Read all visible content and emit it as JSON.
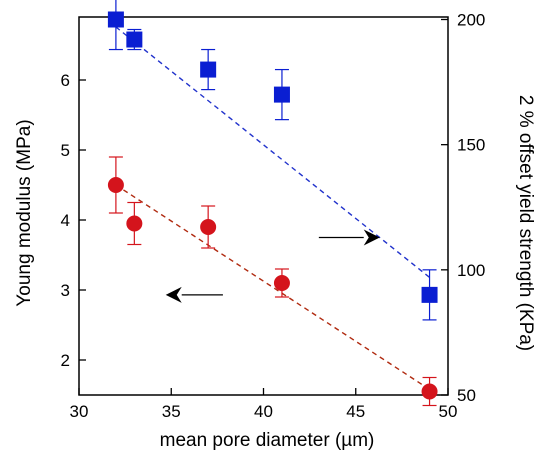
{
  "chart_data": {
    "type": "scatter",
    "xlabel": "mean pore diameter (µm)",
    "ylabel_left": "Young modulus (MPa)",
    "ylabel_right": "2 % offset yield strength (KPa)",
    "xlim": [
      30,
      50
    ],
    "ylim_left": [
      1.5,
      6.9
    ],
    "ylim_right": [
      50,
      201
    ],
    "xticks": [
      "30",
      "35",
      "40",
      "45",
      "50"
    ],
    "yticks_left": [
      "2",
      "3",
      "4",
      "5",
      "6"
    ],
    "yticks_right": [
      "50",
      "100",
      "150",
      "200"
    ],
    "xtick_values": [
      30,
      35,
      40,
      45,
      50
    ],
    "ytick_left_values": [
      2,
      3,
      4,
      5,
      6
    ],
    "ytick_right_values": [
      50,
      100,
      150,
      200
    ],
    "series": [
      {
        "axis": "right",
        "marker": "square",
        "color": "#0a1ed2",
        "points": [
          {
            "x": 32,
            "y": 200,
            "err": 12
          },
          {
            "x": 33,
            "y": 192,
            "err": 4
          },
          {
            "x": 37,
            "y": 180,
            "err": 8
          },
          {
            "x": 41,
            "y": 170,
            "err": 10
          },
          {
            "x": 49,
            "y": 90,
            "err": 10
          }
        ],
        "fit": {
          "x": [
            32,
            49
          ],
          "y": [
            197,
            97
          ]
        },
        "fit_color": "#2233cc"
      },
      {
        "axis": "left",
        "marker": "circle",
        "color": "#d4141c",
        "points": [
          {
            "x": 32,
            "y": 4.5,
            "err": 0.4
          },
          {
            "x": 33,
            "y": 3.95,
            "err": 0.3
          },
          {
            "x": 37,
            "y": 3.9,
            "err": 0.3
          },
          {
            "x": 41,
            "y": 3.1,
            "err": 0.2
          },
          {
            "x": 49,
            "y": 1.55,
            "err": 0.2
          }
        ],
        "fit": {
          "x": [
            32,
            49
          ],
          "y": [
            4.5,
            1.58
          ]
        },
        "fit_color": "#b02a10"
      }
    ],
    "annotations": [
      {
        "type": "arrow",
        "direction": "right",
        "from": {
          "x": 43,
          "y": 3.75
        },
        "to": {
          "x": 46.3,
          "y": 3.75
        }
      },
      {
        "type": "arrow",
        "direction": "left",
        "from": {
          "x": 37.8,
          "y": 2.93
        },
        "to": {
          "x": 34.7,
          "y": 2.93
        }
      }
    ]
  }
}
